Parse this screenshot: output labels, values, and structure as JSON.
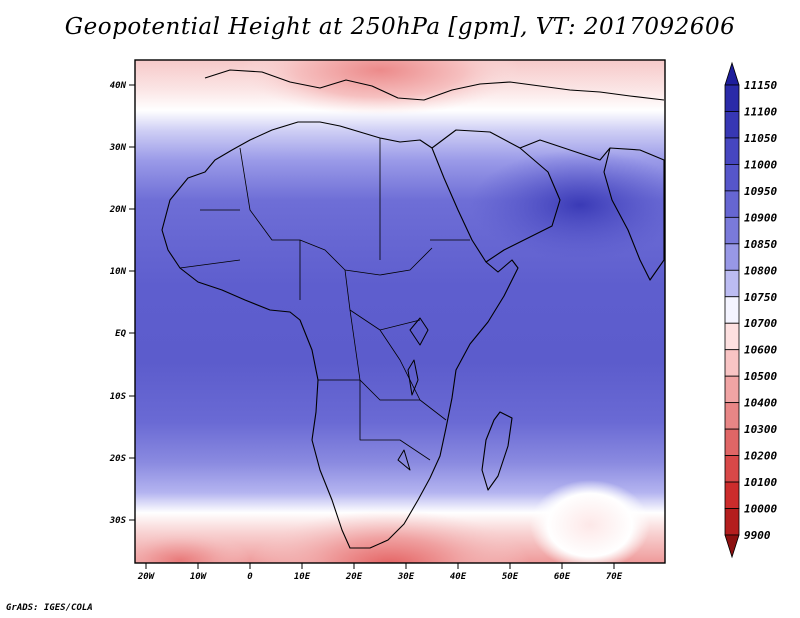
{
  "title": "Geopotential Height at 250hPa [gpm], VT: 2017092606",
  "credit": "GrADS: IGES/COLA",
  "lat_ticks": [
    "40N",
    "30N",
    "20N",
    "10N",
    "EQ",
    "10S",
    "20S",
    "30S"
  ],
  "lon_ticks": [
    "20W",
    "10W",
    "0",
    "10E",
    "20E",
    "30E",
    "40E",
    "50E",
    "60E",
    "70E"
  ],
  "legend": {
    "levels": [
      "11150",
      "11100",
      "11050",
      "11000",
      "10950",
      "10900",
      "10850",
      "10800",
      "10750",
      "10700",
      "10600",
      "10500",
      "10400",
      "10300",
      "10200",
      "10100",
      "10000",
      "9900"
    ],
    "colors": [
      "#1e1e9c",
      "#2a2aa8",
      "#3737b4",
      "#4646c0",
      "#5656ca",
      "#6666d2",
      "#7a7ada",
      "#9898e6",
      "#bcbcf2",
      "#f4f4ff",
      "#fde0e0",
      "#f8c4c4",
      "#f0a4a4",
      "#e88686",
      "#e06666",
      "#d84848",
      "#cc2c2c",
      "#b41e1e",
      "#8c1010"
    ]
  }
}
